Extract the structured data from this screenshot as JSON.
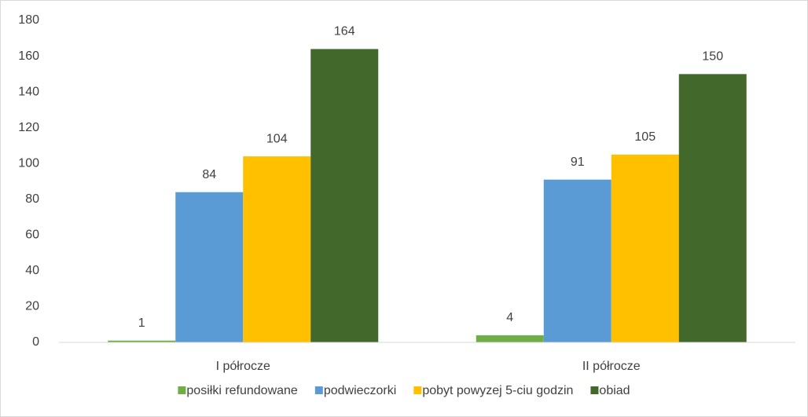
{
  "chart_data": {
    "type": "bar",
    "categories": [
      "I półrocze",
      "II półrocze"
    ],
    "series": [
      {
        "name": "posiłki refundowane",
        "color": "#70ad47",
        "values": [
          1,
          4
        ]
      },
      {
        "name": "podwieczorki",
        "color": "#5b9bd5",
        "values": [
          84,
          91
        ]
      },
      {
        "name": "pobyt powyzej 5-ciu godzin",
        "color": "#ffc000",
        "values": [
          104,
          105
        ]
      },
      {
        "name": "obiad",
        "color": "#43682b",
        "values": [
          164,
          150
        ]
      }
    ],
    "ylim": [
      0,
      180
    ],
    "yticks": [
      0,
      20,
      40,
      60,
      80,
      100,
      120,
      140,
      160,
      180
    ],
    "grid": false,
    "legend": "bottom"
  }
}
